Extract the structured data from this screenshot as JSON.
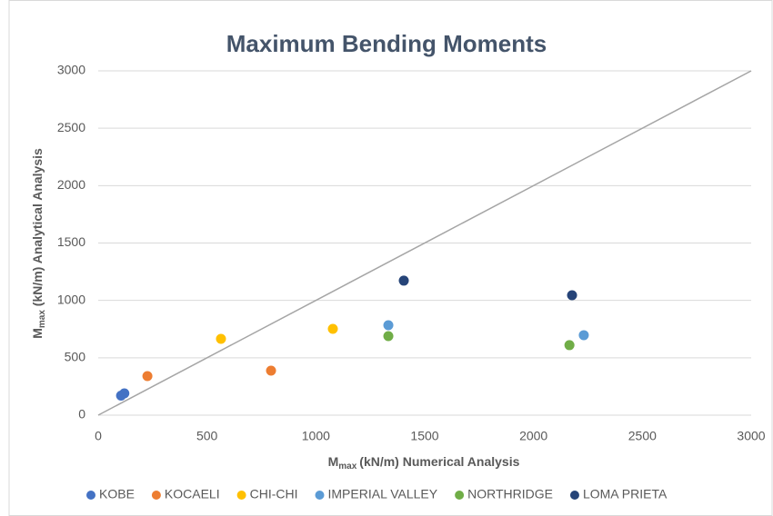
{
  "chart_data": {
    "type": "scatter",
    "title": "Maximum Bending Moments",
    "x_label": {
      "main": "M",
      "sub": "max",
      "rest": "(kN/m) Numerical Analysis"
    },
    "y_label": {
      "main": "M",
      "sub": "max",
      "rest": " (kN/m) Analytical Analysis"
    },
    "xlim": [
      0,
      3000
    ],
    "xticks": [
      0,
      500,
      1000,
      1500,
      2000,
      2500,
      3000
    ],
    "ylim": [
      0,
      3000
    ],
    "yticks": [
      0,
      500,
      1000,
      1500,
      2000,
      2500,
      3000
    ],
    "grid": true,
    "diagonal": true,
    "legend": "bottom",
    "series": [
      {
        "name": "KOBE",
        "color": "#4472c4",
        "x": [
          105,
          120
        ],
        "values": [
          170,
          190
        ]
      },
      {
        "name": "KOCAELI",
        "color": "#ed7d31",
        "x": [
          226,
          794
        ],
        "values": [
          340,
          388
        ]
      },
      {
        "name": "CHI-CHI",
        "color": "#ffc000",
        "x": [
          564,
          1078
        ],
        "values": [
          665,
          752
        ]
      },
      {
        "name": "IMPERIAL VALLEY",
        "color": "#5b9bd5",
        "x": [
          1333,
          2231
        ],
        "values": [
          784,
          697
        ]
      },
      {
        "name": "NORTHRIDGE",
        "color": "#70ad47",
        "x": [
          1333,
          2165
        ],
        "values": [
          689,
          610
        ]
      },
      {
        "name": "LOMA PRIETA",
        "color": "#264478",
        "x": [
          1404,
          2177
        ],
        "values": [
          1172,
          1045
        ]
      }
    ]
  }
}
